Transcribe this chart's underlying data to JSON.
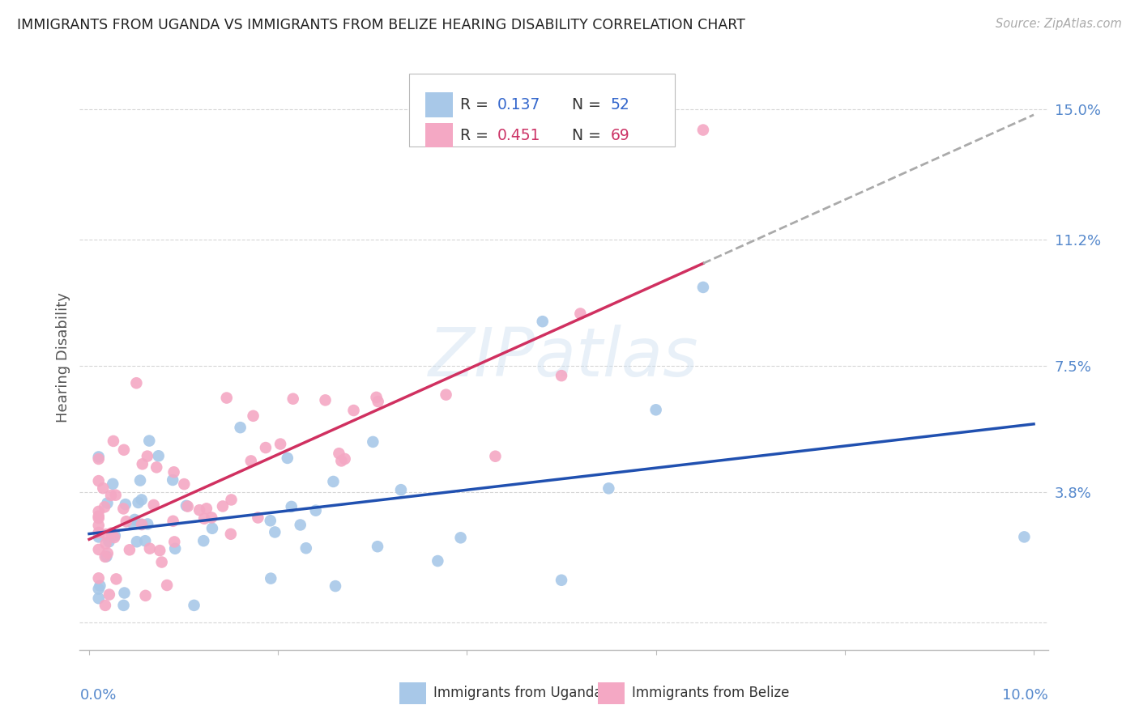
{
  "title": "IMMIGRANTS FROM UGANDA VS IMMIGRANTS FROM BELIZE HEARING DISABILITY CORRELATION CHART",
  "source": "Source: ZipAtlas.com",
  "ylabel": "Hearing Disability",
  "ytick_vals": [
    0.0,
    0.038,
    0.075,
    0.112,
    0.15
  ],
  "ytick_labels": [
    "",
    "3.8%",
    "7.5%",
    "11.2%",
    "15.0%"
  ],
  "xlim": [
    0.0,
    0.1
  ],
  "ylim": [
    0.0,
    0.16
  ],
  "color_uganda": "#a8c8e8",
  "color_belize": "#f4a8c4",
  "color_uganda_line": "#2050b0",
  "color_belize_line": "#d03060",
  "color_r_n": "#3060c0",
  "color_r_n_belize": "#d03060",
  "background_color": "#ffffff",
  "grid_color": "#cccccc",
  "watermark": "ZIPatlas"
}
